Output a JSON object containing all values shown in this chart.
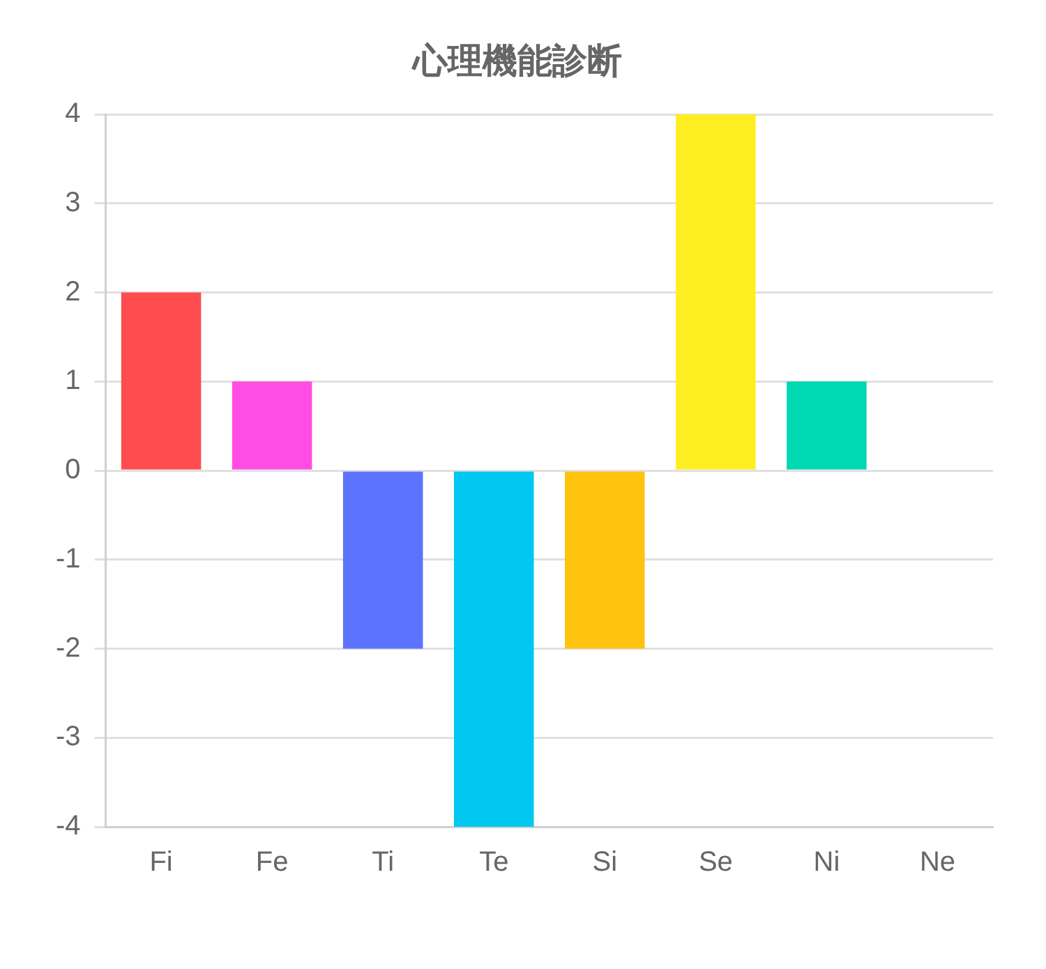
{
  "chart_data": {
    "type": "bar",
    "title": "心理機能診断",
    "categories": [
      "Fi",
      "Fe",
      "Ti",
      "Te",
      "Si",
      "Se",
      "Ni",
      "Ne"
    ],
    "values": [
      2,
      1,
      -2,
      -4,
      -2,
      4,
      1,
      0
    ],
    "colors": [
      "#ff4d4f",
      "#ff4de4",
      "#5b73ff",
      "#00c8f0",
      "#ffc20e",
      "#ffee22",
      "#00d8b4",
      "#9966ff"
    ],
    "ylim": [
      -4,
      4
    ],
    "yticks": [
      -4,
      -3,
      -2,
      -1,
      0,
      1,
      2,
      3,
      4
    ],
    "grid": "y",
    "legend": false
  }
}
